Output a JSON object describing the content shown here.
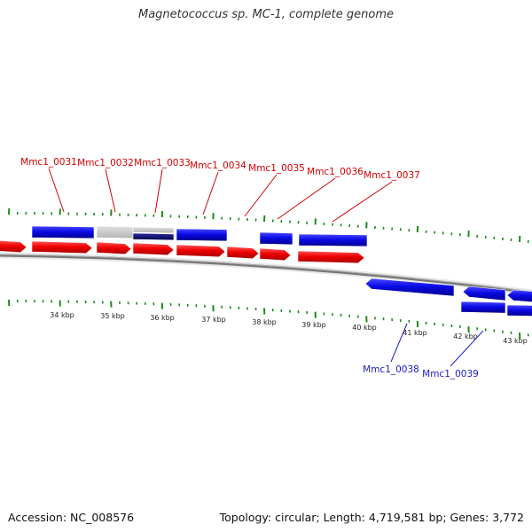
{
  "title": "Magnetococcus sp. MC-1, complete genome",
  "footer": {
    "accession": "Accession: NC_008576",
    "summary": "Topology: circular; Length: 4,719,581 bp; Genes: 3,772"
  },
  "colors": {
    "forward_label": "#d40000",
    "reverse_label": "#1a1acc",
    "cds_red": "#f00000",
    "cds_blue": "#0a0ae6",
    "cds_gray": "#c8c8c8",
    "cds_navy": "#0b0b70",
    "tick": "#1a8c1a",
    "backbone": "#666666"
  },
  "scale": {
    "labels": [
      "34 kbp",
      "35 kbp",
      "36 kbp",
      "37 kbp",
      "38 kbp",
      "39 kbp",
      "40 kbp",
      "41 kbp",
      "42 kbp",
      "43 kbp"
    ]
  },
  "genes": [
    {
      "label": "Mmc1_0031",
      "strand": "forward"
    },
    {
      "label": "Mmc1_0032",
      "strand": "forward"
    },
    {
      "label": "Mmc1_0033",
      "strand": "forward"
    },
    {
      "label": "Mmc1_0034",
      "strand": "forward"
    },
    {
      "label": "Mmc1_0035",
      "strand": "forward"
    },
    {
      "label": "Mmc1_0036",
      "strand": "forward"
    },
    {
      "label": "Mmc1_0037",
      "strand": "forward"
    },
    {
      "label": "Mmc1_0038",
      "strand": "reverse"
    },
    {
      "label": "Mmc1_0039",
      "strand": "reverse"
    }
  ]
}
